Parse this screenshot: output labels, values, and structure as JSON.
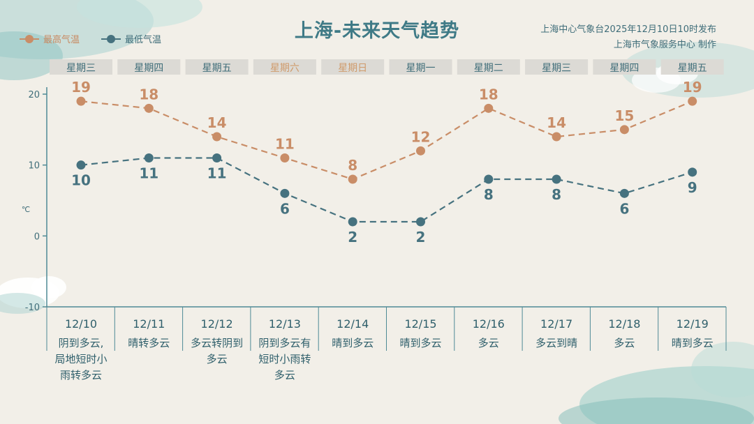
{
  "title": "上海-未来天气趋势",
  "source_line1": "上海中心气象台2025年12月10日10时发布",
  "source_line2": "上海市气象服务中心  制作",
  "legend": {
    "high_label": "最高气温",
    "low_label": "最低气温"
  },
  "colors": {
    "high": "#c98d67",
    "low": "#46727f",
    "weekend": "#cf9a6a",
    "weekday": "#3f6d79",
    "axis": "#4e8a95"
  },
  "chart_data": {
    "type": "line",
    "ylim": [
      -10,
      20
    ],
    "yticks": [
      20,
      10,
      0,
      -10
    ],
    "ylabel": "℃",
    "weekdays": [
      "星期三",
      "星期四",
      "星期五",
      "星期六",
      "星期日",
      "星期一",
      "星期二",
      "星期三",
      "星期四",
      "星期五"
    ],
    "weekend_flags": [
      false,
      false,
      false,
      true,
      true,
      false,
      false,
      false,
      false,
      false
    ],
    "dates": [
      "12/10",
      "12/11",
      "12/12",
      "12/13",
      "12/14",
      "12/15",
      "12/16",
      "12/17",
      "12/18",
      "12/19"
    ],
    "weather": [
      [
        "阴到多云,",
        "局地短时小",
        "雨转多云"
      ],
      [
        "晴转多云"
      ],
      [
        "多云转阴到",
        "多云"
      ],
      [
        "阴到多云有",
        "短时小雨转",
        "多云"
      ],
      [
        "晴到多云"
      ],
      [
        "晴到多云"
      ],
      [
        "多云"
      ],
      [
        "多云到晴"
      ],
      [
        "多云"
      ],
      [
        "晴到多云"
      ]
    ],
    "series": [
      {
        "name": "最高气温",
        "values": [
          19,
          18,
          14,
          11,
          8,
          12,
          18,
          14,
          15,
          19
        ]
      },
      {
        "name": "最低气温",
        "values": [
          10,
          11,
          11,
          6,
          2,
          2,
          8,
          8,
          6,
          9
        ]
      }
    ]
  }
}
